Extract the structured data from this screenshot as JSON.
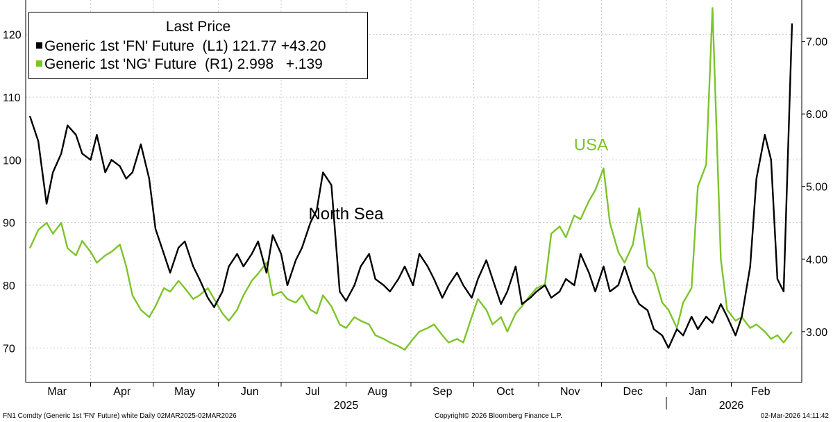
{
  "chart_data": {
    "type": "line",
    "title": "",
    "legend": {
      "title": "Last Price",
      "placement": "top-left",
      "entries": [
        {
          "name": "Generic 1st 'FN' Future",
          "axis": "(L1)",
          "last": "121.77",
          "change": "+43.20",
          "color": "#000000"
        },
        {
          "name": "Generic 1st 'NG' Future",
          "axis": "(R1)",
          "last": "2.998",
          "change": "+.139",
          "color": "#7dc42a"
        }
      ]
    },
    "left_axis": {
      "ticks": [
        "70",
        "80",
        "90",
        "100",
        "110",
        "120"
      ],
      "range": [
        64.5,
        125.5
      ]
    },
    "right_axis": {
      "ticks": [
        "3.00",
        "4.00",
        "5.00",
        "6.00",
        "7.00"
      ],
      "range": [
        2.3,
        7.57
      ]
    },
    "x_months": [
      "Mar",
      "Apr",
      "May",
      "Jun",
      "Jul",
      "Aug",
      "Sep",
      "Oct",
      "Nov",
      "Dec",
      "Jan",
      "Feb"
    ],
    "x_years": [
      "2025",
      "2026"
    ],
    "x_range": [
      "2025-03-03",
      "2026-03-02"
    ],
    "grid": true,
    "annotations": [
      {
        "text": "North Sea",
        "color": "#000000",
        "near": {
          "date": "2025-08-01",
          "axis": "left",
          "value": 90.5
        }
      },
      {
        "text": "USA",
        "color": "#7dc42a",
        "near": {
          "date": "2025-11-26",
          "axis": "right",
          "value": 5.5
        }
      }
    ],
    "series": [
      {
        "name": "Generic 1st 'FN' Future",
        "axis": "left",
        "color": "#000000",
        "points": [
          [
            "2025-03-03",
            107
          ],
          [
            "2025-03-07",
            103
          ],
          [
            "2025-03-11",
            93
          ],
          [
            "2025-03-14",
            98
          ],
          [
            "2025-03-18",
            101
          ],
          [
            "2025-03-21",
            105.5
          ],
          [
            "2025-03-25",
            104
          ],
          [
            "2025-03-28",
            101
          ],
          [
            "2025-04-01",
            100
          ],
          [
            "2025-04-04",
            104
          ],
          [
            "2025-04-08",
            98
          ],
          [
            "2025-04-11",
            100
          ],
          [
            "2025-04-15",
            99
          ],
          [
            "2025-04-18",
            97
          ],
          [
            "2025-04-21",
            98
          ],
          [
            "2025-04-25",
            102.5
          ],
          [
            "2025-04-29",
            97
          ],
          [
            "2025-05-02",
            89
          ],
          [
            "2025-05-06",
            85
          ],
          [
            "2025-05-09",
            82
          ],
          [
            "2025-05-13",
            86
          ],
          [
            "2025-05-16",
            87
          ],
          [
            "2025-05-20",
            83
          ],
          [
            "2025-05-23",
            81
          ],
          [
            "2025-05-27",
            78
          ],
          [
            "2025-05-30",
            76.5
          ],
          [
            "2025-06-03",
            79
          ],
          [
            "2025-06-06",
            83
          ],
          [
            "2025-06-10",
            85
          ],
          [
            "2025-06-13",
            83
          ],
          [
            "2025-06-17",
            85
          ],
          [
            "2025-06-20",
            87
          ],
          [
            "2025-06-24",
            82
          ],
          [
            "2025-06-27",
            88
          ],
          [
            "2025-07-01",
            85
          ],
          [
            "2025-07-04",
            80
          ],
          [
            "2025-07-08",
            84
          ],
          [
            "2025-07-11",
            86
          ],
          [
            "2025-07-15",
            90
          ],
          [
            "2025-07-18",
            92
          ],
          [
            "2025-07-21",
            98
          ],
          [
            "2025-07-25",
            96
          ],
          [
            "2025-07-29",
            79
          ],
          [
            "2025-08-01",
            77.5
          ],
          [
            "2025-08-05",
            80
          ],
          [
            "2025-08-08",
            83
          ],
          [
            "2025-08-12",
            85
          ],
          [
            "2025-08-15",
            81
          ],
          [
            "2025-08-19",
            80
          ],
          [
            "2025-08-22",
            79
          ],
          [
            "2025-08-26",
            81
          ],
          [
            "2025-08-29",
            83
          ],
          [
            "2025-09-02",
            80
          ],
          [
            "2025-09-05",
            85
          ],
          [
            "2025-09-09",
            83
          ],
          [
            "2025-09-12",
            81
          ],
          [
            "2025-09-16",
            78
          ],
          [
            "2025-09-19",
            80
          ],
          [
            "2025-09-23",
            82
          ],
          [
            "2025-09-26",
            80
          ],
          [
            "2025-09-30",
            78
          ],
          [
            "2025-10-03",
            81
          ],
          [
            "2025-10-07",
            84
          ],
          [
            "2025-10-10",
            81
          ],
          [
            "2025-10-14",
            77
          ],
          [
            "2025-10-17",
            79
          ],
          [
            "2025-10-21",
            83
          ],
          [
            "2025-10-24",
            77
          ],
          [
            "2025-10-28",
            78
          ],
          [
            "2025-10-31",
            79
          ],
          [
            "2025-11-04",
            80
          ],
          [
            "2025-11-07",
            78
          ],
          [
            "2025-11-11",
            79
          ],
          [
            "2025-11-14",
            81
          ],
          [
            "2025-11-18",
            80
          ],
          [
            "2025-11-21",
            85
          ],
          [
            "2025-11-25",
            82
          ],
          [
            "2025-11-28",
            79
          ],
          [
            "2025-12-02",
            83
          ],
          [
            "2025-12-05",
            79
          ],
          [
            "2025-12-09",
            80
          ],
          [
            "2025-12-12",
            83
          ],
          [
            "2025-12-16",
            79
          ],
          [
            "2025-12-19",
            77
          ],
          [
            "2025-12-23",
            76
          ],
          [
            "2025-12-26",
            73
          ],
          [
            "2025-12-30",
            72
          ],
          [
            "2026-01-02",
            70
          ],
          [
            "2026-01-06",
            73
          ],
          [
            "2026-01-09",
            72
          ],
          [
            "2026-01-13",
            75
          ],
          [
            "2026-01-16",
            73
          ],
          [
            "2026-01-20",
            75
          ],
          [
            "2026-01-23",
            74
          ],
          [
            "2026-01-27",
            77
          ],
          [
            "2026-01-30",
            75
          ],
          [
            "2026-02-03",
            72
          ],
          [
            "2026-02-06",
            75
          ],
          [
            "2026-02-10",
            83
          ],
          [
            "2026-02-13",
            97
          ],
          [
            "2026-02-17",
            104
          ],
          [
            "2026-02-20",
            100
          ],
          [
            "2026-02-23",
            81
          ],
          [
            "2026-02-26",
            79
          ],
          [
            "2026-03-02",
            121.77
          ]
        ]
      },
      {
        "name": "Generic 1st 'NG' Future",
        "axis": "right",
        "color": "#7dc42a",
        "points": [
          [
            "2025-03-03",
            4.15
          ],
          [
            "2025-03-07",
            4.4
          ],
          [
            "2025-03-11",
            4.5
          ],
          [
            "2025-03-14",
            4.35
          ],
          [
            "2025-03-18",
            4.5
          ],
          [
            "2025-03-21",
            4.15
          ],
          [
            "2025-03-25",
            4.05
          ],
          [
            "2025-03-28",
            4.25
          ],
          [
            "2025-04-01",
            4.1
          ],
          [
            "2025-04-04",
            3.95
          ],
          [
            "2025-04-08",
            4.05
          ],
          [
            "2025-04-11",
            4.1
          ],
          [
            "2025-04-15",
            4.2
          ],
          [
            "2025-04-18",
            3.9
          ],
          [
            "2025-04-21",
            3.5
          ],
          [
            "2025-04-25",
            3.3
          ],
          [
            "2025-04-29",
            3.2
          ],
          [
            "2025-05-02",
            3.35
          ],
          [
            "2025-05-06",
            3.6
          ],
          [
            "2025-05-09",
            3.55
          ],
          [
            "2025-05-13",
            3.7
          ],
          [
            "2025-05-16",
            3.6
          ],
          [
            "2025-05-20",
            3.45
          ],
          [
            "2025-05-23",
            3.5
          ],
          [
            "2025-05-27",
            3.6
          ],
          [
            "2025-05-30",
            3.45
          ],
          [
            "2025-06-03",
            3.25
          ],
          [
            "2025-06-06",
            3.15
          ],
          [
            "2025-06-10",
            3.3
          ],
          [
            "2025-06-13",
            3.5
          ],
          [
            "2025-06-17",
            3.7
          ],
          [
            "2025-06-20",
            3.8
          ],
          [
            "2025-06-24",
            3.95
          ],
          [
            "2025-06-27",
            3.5
          ],
          [
            "2025-07-01",
            3.55
          ],
          [
            "2025-07-04",
            3.45
          ],
          [
            "2025-07-08",
            3.4
          ],
          [
            "2025-07-11",
            3.5
          ],
          [
            "2025-07-15",
            3.3
          ],
          [
            "2025-07-18",
            3.25
          ],
          [
            "2025-07-21",
            3.5
          ],
          [
            "2025-07-25",
            3.35
          ],
          [
            "2025-07-29",
            3.1
          ],
          [
            "2025-08-01",
            3.05
          ],
          [
            "2025-08-05",
            3.2
          ],
          [
            "2025-08-08",
            3.15
          ],
          [
            "2025-08-12",
            3.1
          ],
          [
            "2025-08-15",
            2.95
          ],
          [
            "2025-08-19",
            2.9
          ],
          [
            "2025-08-22",
            2.85
          ],
          [
            "2025-08-26",
            2.8
          ],
          [
            "2025-08-29",
            2.75
          ],
          [
            "2025-09-02",
            2.9
          ],
          [
            "2025-09-05",
            3.0
          ],
          [
            "2025-09-09",
            3.05
          ],
          [
            "2025-09-12",
            3.1
          ],
          [
            "2025-09-16",
            2.95
          ],
          [
            "2025-09-19",
            2.85
          ],
          [
            "2025-09-23",
            2.9
          ],
          [
            "2025-09-26",
            2.85
          ],
          [
            "2025-09-30",
            3.2
          ],
          [
            "2025-10-03",
            3.45
          ],
          [
            "2025-10-07",
            3.3
          ],
          [
            "2025-10-10",
            3.1
          ],
          [
            "2025-10-14",
            3.2
          ],
          [
            "2025-10-17",
            3.0
          ],
          [
            "2025-10-21",
            3.25
          ],
          [
            "2025-10-24",
            3.35
          ],
          [
            "2025-10-28",
            3.5
          ],
          [
            "2025-10-31",
            3.6
          ],
          [
            "2025-11-04",
            3.65
          ],
          [
            "2025-11-07",
            4.35
          ],
          [
            "2025-11-11",
            4.45
          ],
          [
            "2025-11-14",
            4.3
          ],
          [
            "2025-11-18",
            4.6
          ],
          [
            "2025-11-21",
            4.55
          ],
          [
            "2025-11-25",
            4.8
          ],
          [
            "2025-11-28",
            4.95
          ],
          [
            "2025-12-02",
            5.25
          ],
          [
            "2025-12-05",
            4.5
          ],
          [
            "2025-12-09",
            4.1
          ],
          [
            "2025-12-12",
            3.95
          ],
          [
            "2025-12-16",
            4.2
          ],
          [
            "2025-12-19",
            4.7
          ],
          [
            "2025-12-23",
            3.9
          ],
          [
            "2025-12-26",
            3.8
          ],
          [
            "2025-12-30",
            3.4
          ],
          [
            "2026-01-02",
            3.3
          ],
          [
            "2026-01-06",
            3.05
          ],
          [
            "2026-01-09",
            3.4
          ],
          [
            "2026-01-13",
            3.6
          ],
          [
            "2026-01-16",
            5.0
          ],
          [
            "2026-01-20",
            5.3
          ],
          [
            "2026-01-23",
            7.46
          ],
          [
            "2026-01-27",
            4.0
          ],
          [
            "2026-01-30",
            3.3
          ],
          [
            "2026-02-03",
            3.15
          ],
          [
            "2026-02-06",
            3.2
          ],
          [
            "2026-02-10",
            3.05
          ],
          [
            "2026-02-13",
            3.1
          ],
          [
            "2026-02-17",
            3.0
          ],
          [
            "2026-02-20",
            2.9
          ],
          [
            "2026-02-23",
            2.95
          ],
          [
            "2026-02-26",
            2.85
          ],
          [
            "2026-03-02",
            2.998
          ]
        ]
      }
    ]
  },
  "footer": {
    "left": "FN1 Comdty (Generic 1st 'FN' Future) white Daily 02MAR2025-02MAR2026",
    "center": "Copyright© 2026 Bloomberg Finance L.P.",
    "right": "02-Mar-2026 14:11:42"
  },
  "colors": {
    "fn": "#000000",
    "ng": "#7dc42a",
    "grid": "#c8c8c8"
  }
}
